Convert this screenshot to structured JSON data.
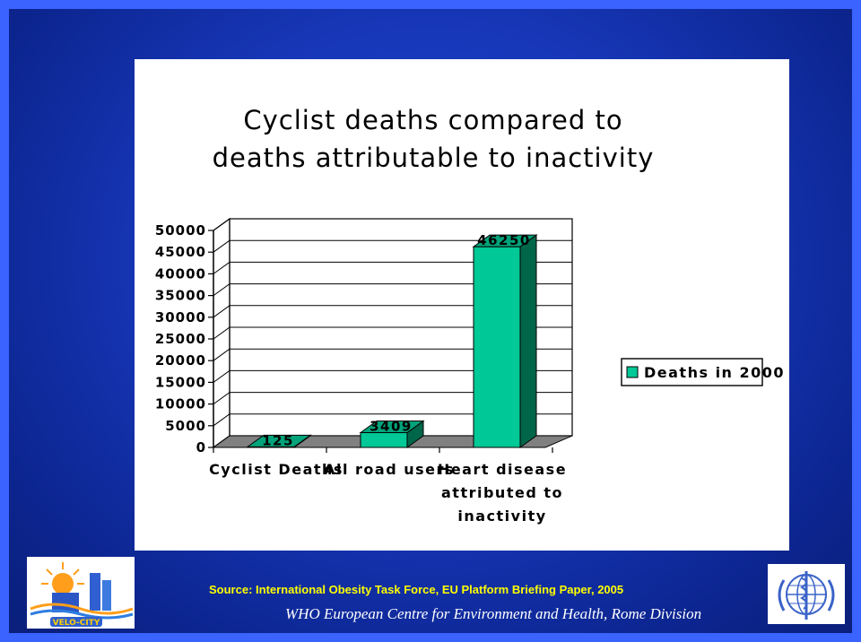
{
  "chart_data": {
    "type": "bar",
    "title": "Cyclist deaths compared to deaths attributable to inactivity",
    "title_lines": [
      "Cyclist deaths compared to",
      "deaths attributable to inactivity"
    ],
    "categories": [
      "Cyclist Deaths",
      "All road users",
      "Heart disease attributed to inactivity"
    ],
    "category_lines": [
      [
        "Cyclist Deaths"
      ],
      [
        "All road users"
      ],
      [
        "Heart disease",
        "attributed to",
        "inactivity"
      ]
    ],
    "series": [
      {
        "name": "Deaths in 2000",
        "values": [
          125,
          3409,
          46250
        ]
      }
    ],
    "data_labels": [
      "125",
      "3409",
      "46250"
    ],
    "ylim": [
      0,
      50000
    ],
    "yticks": [
      0,
      5000,
      10000,
      15000,
      20000,
      25000,
      30000,
      35000,
      40000,
      45000,
      50000
    ],
    "grid": true,
    "legend_position": "right",
    "colors": {
      "bar_front": "#00c896",
      "bar_side": "#00664a",
      "bar_top": "#00a37a",
      "floor": "#808080"
    }
  },
  "source": "Source: International Obesity Task Force, EU Platform Briefing Paper, 2005",
  "footer": "WHO European Centre for Environment and Health, Rome Division",
  "logos": {
    "left": "velo-city-logo",
    "left_text": "VELO-CITY",
    "right": "who-emblem"
  }
}
